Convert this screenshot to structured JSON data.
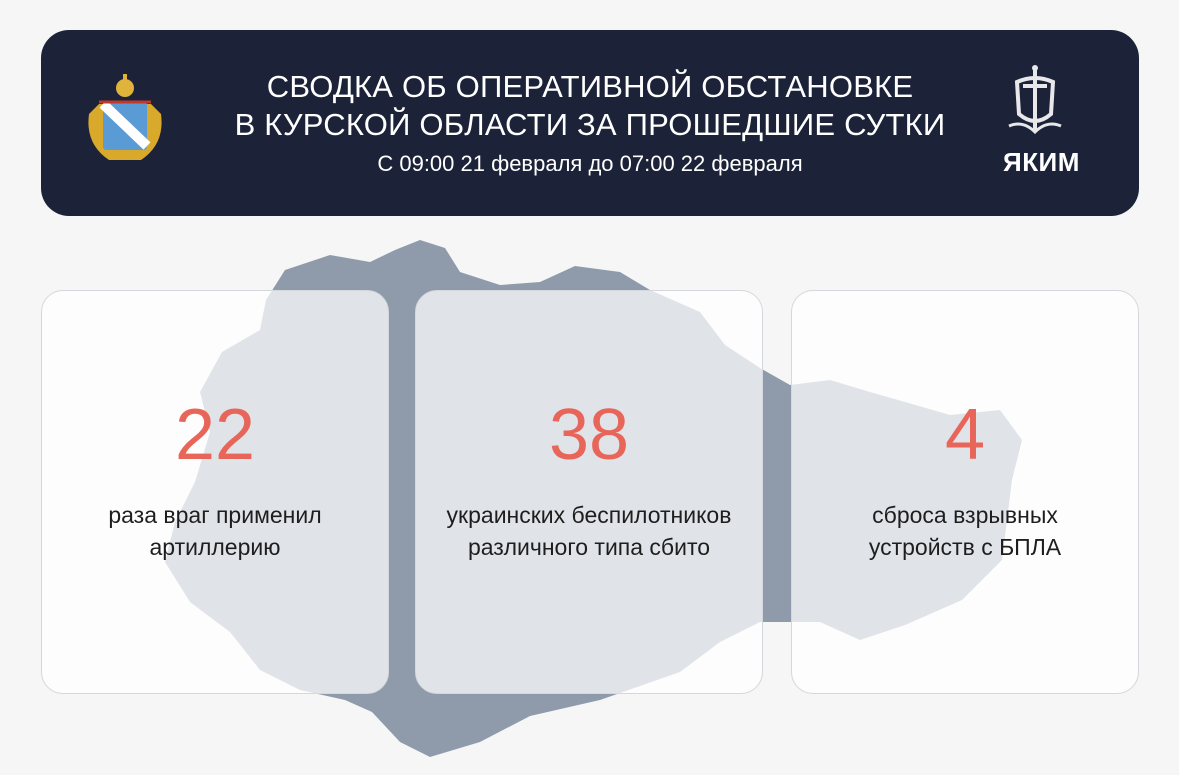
{
  "header": {
    "title_line1": "СВОДКА ОБ ОПЕРАТИВНОЙ ОБСТАНОВКЕ",
    "title_line2": "В КУРСКОЙ ОБЛАСТИ ЗА ПРОШЕДШИЕ СУТКИ",
    "subtitle": "С 09:00 21 февраля до 07:00 22 февраля",
    "logo_text": "ЯКИМ"
  },
  "stats": [
    {
      "value": "22",
      "line1": "раза враг применил",
      "line2": "артиллерию"
    },
    {
      "value": "38",
      "line1": "украинских беспилотников",
      "line2": "различного типа сбито"
    },
    {
      "value": "4",
      "line1": "сброса взрывных",
      "line2": "устройств с БПЛА"
    }
  ],
  "colors": {
    "header_bg": "#1c2339",
    "accent": "#e8655a",
    "map": "#8f9bab"
  }
}
